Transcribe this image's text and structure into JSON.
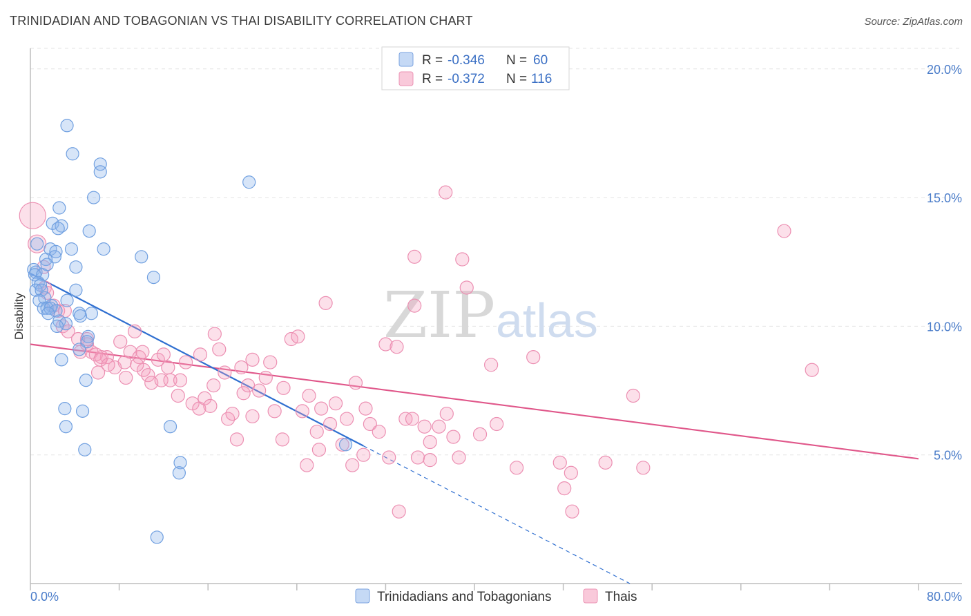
{
  "title": "TRINIDADIAN AND TOBAGONIAN VS THAI DISABILITY CORRELATION CHART",
  "source": "Source: ZipAtlas.com",
  "watermark": {
    "zip": "ZIP",
    "atlas": "atlas"
  },
  "legend": {
    "series1": {
      "r_label": "R =",
      "r_value": "-0.346",
      "n_label": "N =",
      "n_value": "60"
    },
    "series2": {
      "r_label": "R =",
      "r_value": "-0.372",
      "n_label": "N =",
      "n_value": "116"
    }
  },
  "colors": {
    "blue": "#6f9fe0",
    "blue_line": "#2f6fd0",
    "pink": "#f08bb0",
    "pink_line": "#e0578a"
  },
  "chart_data": {
    "type": "scatter",
    "title": "TRINIDADIAN AND TOBAGONIAN VS THAI DISABILITY CORRELATION CHART",
    "xlabel": "",
    "ylabel": "Disability",
    "xlim": [
      0,
      80
    ],
    "ylim": [
      0,
      20.8
    ],
    "x_tick_labels": [
      "0.0%",
      "80.0%"
    ],
    "y_ticks": [
      {
        "value": 5,
        "label": "5.0%"
      },
      {
        "value": 10,
        "label": "10.0%"
      },
      {
        "value": 15,
        "label": "15.0%"
      },
      {
        "value": 20,
        "label": "20.0%"
      }
    ],
    "series": [
      {
        "name": "Trinidadians and Tobagonians",
        "points": [
          [
            3.3,
            17.8
          ],
          [
            3.8,
            16.7
          ],
          [
            6.3,
            16.3
          ],
          [
            6.3,
            16.0
          ],
          [
            19.7,
            15.6
          ],
          [
            5.7,
            15.0
          ],
          [
            2.6,
            14.6
          ],
          [
            2.0,
            14.0
          ],
          [
            2.8,
            13.9
          ],
          [
            2.5,
            13.8
          ],
          [
            5.3,
            13.7
          ],
          [
            0.6,
            13.2
          ],
          [
            1.8,
            13.0
          ],
          [
            3.7,
            13.0
          ],
          [
            6.6,
            13.0
          ],
          [
            2.3,
            12.9
          ],
          [
            2.2,
            12.7
          ],
          [
            10.0,
            12.7
          ],
          [
            1.4,
            12.6
          ],
          [
            1.5,
            12.4
          ],
          [
            4.1,
            12.3
          ],
          [
            0.3,
            12.2
          ],
          [
            0.5,
            12.1
          ],
          [
            0.4,
            12.0
          ],
          [
            1.1,
            12.0
          ],
          [
            11.1,
            11.9
          ],
          [
            0.7,
            11.7
          ],
          [
            0.9,
            11.6
          ],
          [
            0.5,
            11.4
          ],
          [
            1.0,
            11.4
          ],
          [
            4.1,
            11.4
          ],
          [
            1.3,
            11.1
          ],
          [
            3.3,
            11.0
          ],
          [
            0.8,
            11.0
          ],
          [
            1.9,
            10.8
          ],
          [
            1.2,
            10.7
          ],
          [
            1.5,
            10.7
          ],
          [
            1.8,
            10.7
          ],
          [
            2.3,
            10.6
          ],
          [
            1.6,
            10.5
          ],
          [
            4.4,
            10.5
          ],
          [
            5.5,
            10.5
          ],
          [
            4.5,
            10.4
          ],
          [
            2.6,
            10.2
          ],
          [
            3.2,
            10.1
          ],
          [
            2.4,
            10.0
          ],
          [
            5.2,
            9.6
          ],
          [
            5.1,
            9.4
          ],
          [
            4.4,
            9.1
          ],
          [
            2.8,
            8.7
          ],
          [
            5.0,
            7.9
          ],
          [
            3.1,
            6.8
          ],
          [
            4.7,
            6.7
          ],
          [
            3.2,
            6.1
          ],
          [
            12.6,
            6.1
          ],
          [
            28.4,
            5.4
          ],
          [
            4.9,
            5.2
          ],
          [
            13.5,
            4.7
          ],
          [
            13.4,
            4.3
          ],
          [
            11.4,
            1.8
          ]
        ],
        "trend": {
          "x": [
            0,
            30
          ],
          "y": [
            12.05,
            5.35
          ],
          "dashed_x": [
            30,
            54
          ],
          "dashed_y": [
            5.35,
            0.0
          ]
        }
      },
      {
        "name": "Thais",
        "points": [
          [
            0.2,
            14.3
          ],
          [
            0.6,
            13.2
          ],
          [
            1.2,
            12.3
          ],
          [
            1.3,
            11.5
          ],
          [
            1.5,
            11.3
          ],
          [
            2.1,
            10.8
          ],
          [
            2.5,
            10.6
          ],
          [
            3.1,
            10.6
          ],
          [
            2.9,
            10.0
          ],
          [
            3.4,
            9.8
          ],
          [
            5.1,
            9.5
          ],
          [
            6.9,
            8.8
          ],
          [
            4.3,
            9.5
          ],
          [
            4.5,
            9.0
          ],
          [
            5.1,
            9.3
          ],
          [
            5.5,
            9.0
          ],
          [
            6.4,
            8.8
          ],
          [
            7.6,
            8.4
          ],
          [
            5.9,
            8.9
          ],
          [
            6.3,
            8.7
          ],
          [
            7.0,
            8.5
          ],
          [
            8.1,
            9.4
          ],
          [
            8.5,
            8.6
          ],
          [
            8.6,
            8.0
          ],
          [
            9.0,
            9.0
          ],
          [
            9.4,
            9.8
          ],
          [
            9.8,
            8.8
          ],
          [
            10.1,
            9.0
          ],
          [
            10.2,
            8.3
          ],
          [
            10.6,
            8.1
          ],
          [
            10.9,
            7.8
          ],
          [
            11.5,
            8.7
          ],
          [
            11.8,
            7.9
          ],
          [
            12.4,
            8.4
          ],
          [
            12.6,
            7.9
          ],
          [
            13.3,
            7.3
          ],
          [
            13.5,
            7.9
          ],
          [
            14.0,
            8.6
          ],
          [
            15.3,
            8.9
          ],
          [
            14.6,
            7.0
          ],
          [
            15.2,
            6.8
          ],
          [
            15.7,
            7.2
          ],
          [
            16.2,
            6.9
          ],
          [
            16.5,
            7.7
          ],
          [
            16.6,
            9.7
          ],
          [
            17.0,
            9.1
          ],
          [
            17.8,
            6.4
          ],
          [
            18.2,
            6.6
          ],
          [
            18.6,
            5.6
          ],
          [
            19.0,
            8.4
          ],
          [
            19.2,
            7.4
          ],
          [
            19.6,
            7.7
          ],
          [
            20.0,
            6.5
          ],
          [
            20.6,
            7.5
          ],
          [
            21.2,
            8.0
          ],
          [
            21.6,
            8.6
          ],
          [
            22.0,
            6.7
          ],
          [
            22.8,
            7.6
          ],
          [
            23.5,
            9.5
          ],
          [
            24.1,
            9.6
          ],
          [
            24.5,
            6.7
          ],
          [
            25.1,
            7.3
          ],
          [
            25.8,
            5.9
          ],
          [
            26.2,
            6.8
          ],
          [
            27.0,
            6.2
          ],
          [
            27.5,
            7.0
          ],
          [
            28.1,
            5.4
          ],
          [
            28.5,
            6.4
          ],
          [
            29.0,
            4.6
          ],
          [
            29.3,
            7.8
          ],
          [
            30.2,
            6.8
          ],
          [
            30.6,
            6.2
          ],
          [
            31.4,
            5.9
          ],
          [
            32.0,
            9.3
          ],
          [
            32.3,
            4.9
          ],
          [
            33.0,
            9.2
          ],
          [
            33.8,
            6.4
          ],
          [
            34.4,
            6.4
          ],
          [
            34.9,
            4.9
          ],
          [
            35.5,
            6.1
          ],
          [
            36.0,
            5.5
          ],
          [
            36.8,
            6.1
          ],
          [
            37.5,
            6.6
          ],
          [
            38.1,
            5.7
          ],
          [
            38.6,
            4.9
          ],
          [
            37.4,
            15.2
          ],
          [
            38.9,
            12.6
          ],
          [
            39.3,
            11.5
          ],
          [
            34.6,
            12.7
          ],
          [
            34.6,
            10.8
          ],
          [
            33.2,
            2.8
          ],
          [
            26.6,
            10.9
          ],
          [
            24.9,
            4.6
          ],
          [
            36.0,
            4.8
          ],
          [
            41.5,
            8.5
          ],
          [
            43.8,
            4.5
          ],
          [
            45.3,
            8.8
          ],
          [
            47.7,
            4.7
          ],
          [
            48.1,
            3.7
          ],
          [
            48.7,
            4.3
          ],
          [
            48.8,
            2.8
          ],
          [
            51.8,
            4.7
          ],
          [
            54.3,
            7.3
          ],
          [
            55.2,
            4.5
          ],
          [
            67.9,
            13.7
          ],
          [
            70.4,
            8.3
          ],
          [
            20.0,
            8.7
          ],
          [
            17.5,
            8.2
          ],
          [
            12.0,
            8.9
          ],
          [
            9.6,
            8.5
          ],
          [
            6.1,
            8.2
          ],
          [
            22.7,
            5.6
          ],
          [
            30.0,
            5.0
          ],
          [
            40.5,
            5.8
          ],
          [
            42.0,
            6.2
          ],
          [
            26.0,
            5.2
          ]
        ],
        "trend": {
          "x": [
            0,
            80
          ],
          "y": [
            9.3,
            4.85
          ]
        }
      }
    ]
  },
  "bottom_legend": {
    "series1": "Trinidadians and Tobagonians",
    "series2": "Thais"
  }
}
